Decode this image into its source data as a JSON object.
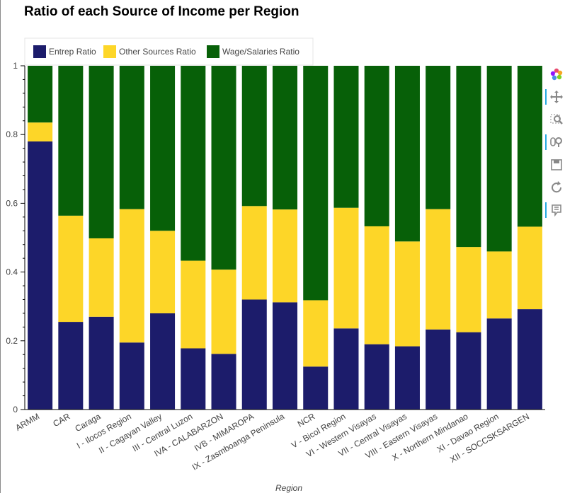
{
  "chart_data": {
    "type": "bar",
    "stacked": true,
    "title": "Ratio of each Source of Income per Region",
    "xlabel": "Region",
    "ylabel": "",
    "ylim": [
      0,
      1
    ],
    "yticks": [
      0,
      0.2,
      0.4,
      0.6,
      0.8,
      1
    ],
    "ytick_labels": [
      "0",
      "0.2",
      "0.4",
      "0.6",
      "0.8",
      "1"
    ],
    "grid": false,
    "legend_position": "top-left",
    "categories": [
      "ARMM",
      "CAR",
      "Caraga",
      "I - Ilocos Region",
      "II - Cagayan Valley",
      "III - Central Luzon",
      "IVA - CALABARZON",
      "IVB - MIMAROPA",
      "IX - Zasmboanga Peninsula",
      "NCR",
      "V - Bicol Region",
      "VI - Western Visayas",
      "VII - Central Visayas",
      "VIII - Eastern Visayas",
      "X - Northern Mindanao",
      "XI - Davao Region",
      "XII - SOCCSKSARGEN"
    ],
    "series": [
      {
        "name": "Entrep Ratio",
        "color": "#1c1c6b",
        "values": [
          0.78,
          0.255,
          0.27,
          0.195,
          0.28,
          0.178,
          0.162,
          0.32,
          0.312,
          0.125,
          0.236,
          0.19,
          0.184,
          0.233,
          0.225,
          0.265,
          0.292
        ]
      },
      {
        "name": "Other Sources Ratio",
        "color": "#fdd628",
        "values": [
          0.055,
          0.309,
          0.228,
          0.388,
          0.24,
          0.255,
          0.245,
          0.272,
          0.27,
          0.193,
          0.351,
          0.343,
          0.305,
          0.35,
          0.248,
          0.195,
          0.24
        ]
      },
      {
        "name": "Wage/Salaries Ratio",
        "color": "#076008",
        "values": [
          0.165,
          0.436,
          0.502,
          0.417,
          0.48,
          0.567,
          0.593,
          0.408,
          0.418,
          0.682,
          0.413,
          0.467,
          0.511,
          0.417,
          0.527,
          0.54,
          0.468
        ]
      }
    ]
  },
  "toolbar": {
    "tools": [
      {
        "name": "bokeh-logo-icon",
        "active": false
      },
      {
        "name": "pan-tool-icon",
        "active": true
      },
      {
        "name": "box-zoom-tool-icon",
        "active": false
      },
      {
        "name": "wheel-zoom-tool-icon",
        "active": true
      },
      {
        "name": "save-tool-icon",
        "active": false
      },
      {
        "name": "reset-tool-icon",
        "active": false
      },
      {
        "name": "hover-tool-icon",
        "active": true
      }
    ]
  }
}
